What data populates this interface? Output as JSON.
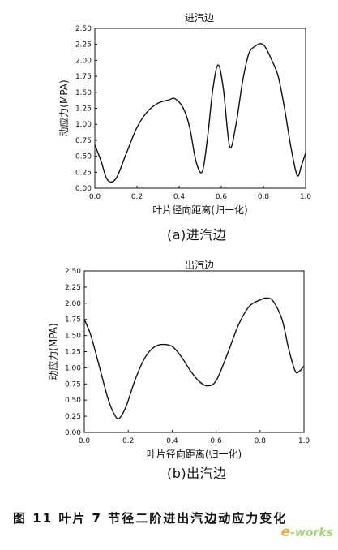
{
  "figure": {
    "caption": "图 11  叶片 7 节径二阶进出汽边动应力变化",
    "watermark": "e-works"
  },
  "chart_data": [
    {
      "type": "line",
      "title": "进汽边",
      "panel_label": "(a)进汽边",
      "xlabel": "叶片径向距离(归一化)",
      "ylabel": "动应力(MPA)",
      "xlim": [
        0.0,
        1.0
      ],
      "ylim": [
        0.0,
        2.5
      ],
      "xticks": [
        "0.0",
        "0.2",
        "0.4",
        "0.6",
        "0.8",
        "1.0"
      ],
      "yticks": [
        "0.00",
        "0.25",
        "0.50",
        "0.75",
        "1.00",
        "1.25",
        "1.50",
        "1.75",
        "2.00",
        "2.25",
        "2.50"
      ],
      "grid": false,
      "x": [
        0.0,
        0.03,
        0.06,
        0.1,
        0.15,
        0.2,
        0.25,
        0.3,
        0.35,
        0.38,
        0.42,
        0.45,
        0.48,
        0.51,
        0.535,
        0.56,
        0.585,
        0.61,
        0.64,
        0.67,
        0.7,
        0.73,
        0.76,
        0.79,
        0.81,
        0.84,
        0.87,
        0.9,
        0.93,
        0.96,
        0.98,
        1.0
      ],
      "values": [
        0.68,
        0.42,
        0.13,
        0.15,
        0.55,
        0.95,
        1.2,
        1.33,
        1.38,
        1.4,
        1.25,
        0.95,
        0.42,
        0.26,
        0.8,
        1.55,
        1.93,
        1.55,
        0.65,
        1.0,
        1.65,
        2.1,
        2.22,
        2.26,
        2.2,
        2.0,
        1.75,
        1.25,
        0.65,
        0.2,
        0.35,
        0.55
      ]
    },
    {
      "type": "line",
      "title": "出汽边",
      "panel_label": "(b)出汽边",
      "xlabel": "叶片径向距离(归一化)",
      "ylabel": "动应力(MPA)",
      "xlim": [
        0.0,
        1.0
      ],
      "ylim": [
        0.0,
        2.5
      ],
      "xticks": [
        "0.0",
        "0.2",
        "0.4",
        "0.6",
        "0.8",
        "1.0"
      ],
      "yticks": [
        "0.00",
        "0.25",
        "0.50",
        "0.75",
        "1.00",
        "1.25",
        "1.50",
        "1.75",
        "2.00",
        "2.25",
        "2.50"
      ],
      "grid": false,
      "x": [
        0.0,
        0.03,
        0.07,
        0.11,
        0.14,
        0.16,
        0.19,
        0.23,
        0.27,
        0.31,
        0.35,
        0.4,
        0.44,
        0.48,
        0.52,
        0.56,
        0.6,
        0.65,
        0.7,
        0.75,
        0.8,
        0.83,
        0.86,
        0.9,
        0.93,
        0.96,
        0.98,
        1.0
      ],
      "values": [
        1.75,
        1.5,
        1.0,
        0.5,
        0.26,
        0.22,
        0.4,
        0.8,
        1.12,
        1.3,
        1.36,
        1.33,
        1.18,
        0.97,
        0.8,
        0.72,
        0.8,
        1.2,
        1.65,
        1.95,
        2.05,
        2.08,
        2.03,
        1.75,
        1.3,
        0.95,
        0.95,
        1.03
      ]
    }
  ]
}
